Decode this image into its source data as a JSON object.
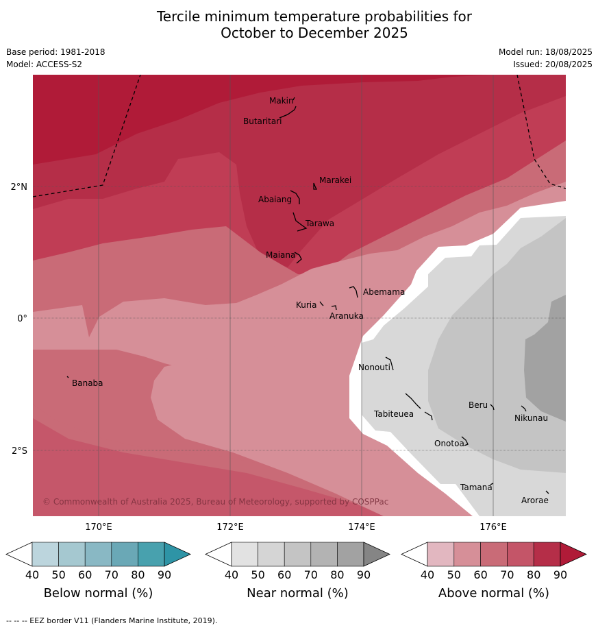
{
  "title_line1": "Tercile minimum temperature probabilities for",
  "title_line2": "October to December 2025",
  "info": {
    "base_period": "Base period: 1981-2018",
    "model": "Model: ACCESS-S2",
    "model_run": "Model run: 18/08/2025",
    "issued": "Issued: 20/08/2025"
  },
  "map": {
    "lat_labels": [
      "2°N",
      "0°",
      "2°S"
    ],
    "lon_labels": [
      "170°E",
      "172°E",
      "174°E",
      "176°E"
    ],
    "copyright": "© Commonwealth of Australia 2025, Bureau of Meteorology, supported by COSPPac",
    "places": [
      "Makin",
      "Butaritari",
      "Marakei",
      "Abaiang",
      "Tarawa",
      "Maiana",
      "Abemama",
      "Kuria",
      "Aranuka",
      "Banaba",
      "Nonouti",
      "Tabiteuea",
      "Beru",
      "Nikunau",
      "Onotoa",
      "Tamana",
      "Arorae"
    ]
  },
  "legend": {
    "ticks": [
      "40",
      "50",
      "60",
      "70",
      "80",
      "90"
    ],
    "below": {
      "label": "Below normal (%)",
      "colors": [
        "#ffffff",
        "#bcd5dd",
        "#a5c8d0",
        "#89b8c4",
        "#6aa8b6",
        "#48a1ae",
        "#2e94a6"
      ]
    },
    "near": {
      "label": "Near normal (%)",
      "colors": [
        "#ffffff",
        "#e2e2e2",
        "#d5d5d5",
        "#c4c4c4",
        "#b3b3b3",
        "#a2a2a2",
        "#858585"
      ]
    },
    "above": {
      "label": "Above normal (%)",
      "colors": [
        "#ffffff",
        "#e2b7c0",
        "#d68f98",
        "#c96b77",
        "#c45568",
        "#b52e48",
        "#b01b38"
      ]
    }
  },
  "footer": "-- -- -- EEZ border V11 (Flanders Marine Institute, 2019)."
}
